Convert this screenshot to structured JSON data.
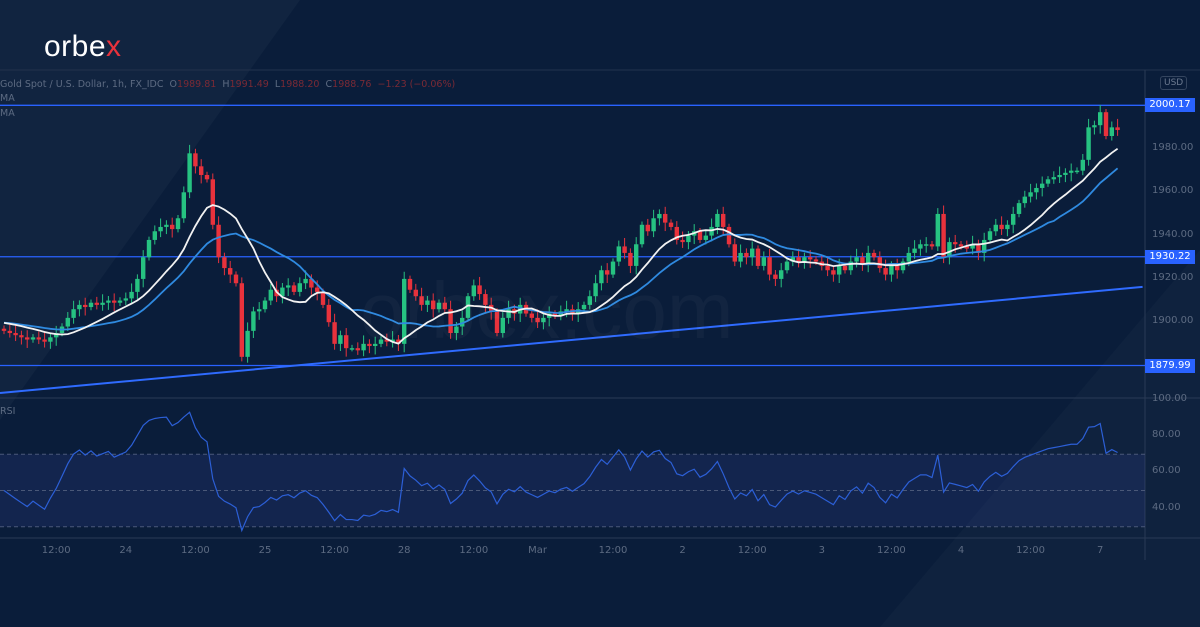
{
  "brand": {
    "logo_text_main": "orbe",
    "logo_text_accent": "x",
    "watermark": "orbex.com"
  },
  "legend": {
    "symbol": "Gold Spot / U.S. Dollar, 1h, FX_IDC",
    "o_label": "O",
    "o": "1989.81",
    "h_label": "H",
    "h": "1991.49",
    "l_label": "L",
    "l": "1988.20",
    "c_label": "C",
    "c": "1988.76",
    "change": "−1.23 (−0.06%)",
    "ma1": "MA",
    "ma2": "MA"
  },
  "currency": "USD",
  "rsi_label": "RSI",
  "colors": {
    "bg": "#0a1d3a",
    "up": "#26c281",
    "down": "#e8323c",
    "ma_fast": "#f2f2f2",
    "ma_slow": "#2f8ae0",
    "level": "#2962ff",
    "rsi": "#2c5fd6"
  },
  "chart_data": {
    "type": "candlestick",
    "title": "Gold Spot / U.S. Dollar, 1h, FX_IDC",
    "ylim": [
      1860,
      2010
    ],
    "yticks": [
      "1980.00",
      "1960.00",
      "1940.00",
      "1920.00",
      "1900.00"
    ],
    "ytick_values": [
      1980,
      1960,
      1940,
      1920,
      1900
    ],
    "levels": [
      {
        "value": 2000.17,
        "label": "2000.17"
      },
      {
        "value": 1930.22,
        "label": "1930.22"
      },
      {
        "value": 1879.99,
        "label": "1879.99"
      }
    ],
    "trendline": {
      "from": [
        0,
        1867.3
      ],
      "to": [
        197,
        1916.3
      ]
    },
    "xticks": [
      {
        "bar": 9,
        "label": "12:00"
      },
      {
        "bar": 21,
        "label": "24"
      },
      {
        "bar": 33,
        "label": "12:00"
      },
      {
        "bar": 45,
        "label": "25"
      },
      {
        "bar": 57,
        "label": "12:00"
      },
      {
        "bar": 69,
        "label": "28"
      },
      {
        "bar": 81,
        "label": "12:00"
      },
      {
        "bar": 92,
        "label": "Mar"
      },
      {
        "bar": 105,
        "label": "12:00"
      },
      {
        "bar": 117,
        "label": "2"
      },
      {
        "bar": 129,
        "label": "12:00"
      },
      {
        "bar": 141,
        "label": "3"
      },
      {
        "bar": 153,
        "label": "12:00"
      },
      {
        "bar": 165,
        "label": "4"
      },
      {
        "bar": 177,
        "label": "12:00"
      },
      {
        "bar": 189,
        "label": "7"
      }
    ],
    "closes": [
      1896,
      1895,
      1894,
      1893,
      1892,
      1893,
      1892,
      1891,
      1893,
      1895,
      1898,
      1902,
      1906,
      1908,
      1907,
      1909,
      1908,
      1909,
      1910,
      1909,
      1910,
      1911,
      1914,
      1920,
      1930,
      1938,
      1942,
      1944,
      1945,
      1943,
      1948,
      1960,
      1978,
      1972,
      1968,
      1966,
      1945,
      1930,
      1925,
      1922,
      1918,
      1884,
      1896,
      1905,
      1906,
      1910,
      1915,
      1912,
      1916,
      1917,
      1914,
      1918,
      1920,
      1916,
      1914,
      1908,
      1900,
      1890,
      1894,
      1888,
      1888,
      1887,
      1890,
      1889,
      1890,
      1892,
      1891,
      1892,
      1890,
      1920,
      1915,
      1912,
      1908,
      1910,
      1906,
      1909,
      1906,
      1895,
      1898,
      1902,
      1912,
      1917,
      1913,
      1908,
      1905,
      1895,
      1902,
      1906,
      1904,
      1908,
      1904,
      1902,
      1900,
      1902,
      1904,
      1903,
      1905,
      1906,
      1904,
      1906,
      1908,
      1912,
      1918,
      1924,
      1922,
      1928,
      1935,
      1932,
      1926,
      1936,
      1945,
      1942,
      1948,
      1950,
      1946,
      1944,
      1938,
      1937,
      1940,
      1942,
      1938,
      1940,
      1944,
      1950,
      1944,
      1936,
      1928,
      1932,
      1930,
      1934,
      1926,
      1930,
      1922,
      1920,
      1924,
      1928,
      1930,
      1928,
      1930,
      1929,
      1928,
      1926,
      1924,
      1922,
      1926,
      1924,
      1928,
      1930,
      1927,
      1932,
      1930,
      1925,
      1922,
      1926,
      1924,
      1928,
      1932,
      1934,
      1936,
      1936,
      1935,
      1950,
      1930,
      1937,
      1936,
      1935,
      1934,
      1936,
      1932,
      1938,
      1942,
      1945,
      1943,
      1945,
      1950,
      1955,
      1958,
      1960,
      1962,
      1964,
      1966,
      1967,
      1968,
      1969,
      1970,
      1970,
      1975,
      1990,
      1991,
      1997,
      1986,
      1990,
      1988.76
    ],
    "rsi": {
      "ylim": [
        20,
        100
      ],
      "yticks": [
        "100.00",
        "80.00",
        "60.00",
        "40.00"
      ],
      "ytick_values": [
        100,
        80,
        60,
        40
      ],
      "bands": [
        70,
        50,
        30
      ]
    }
  }
}
